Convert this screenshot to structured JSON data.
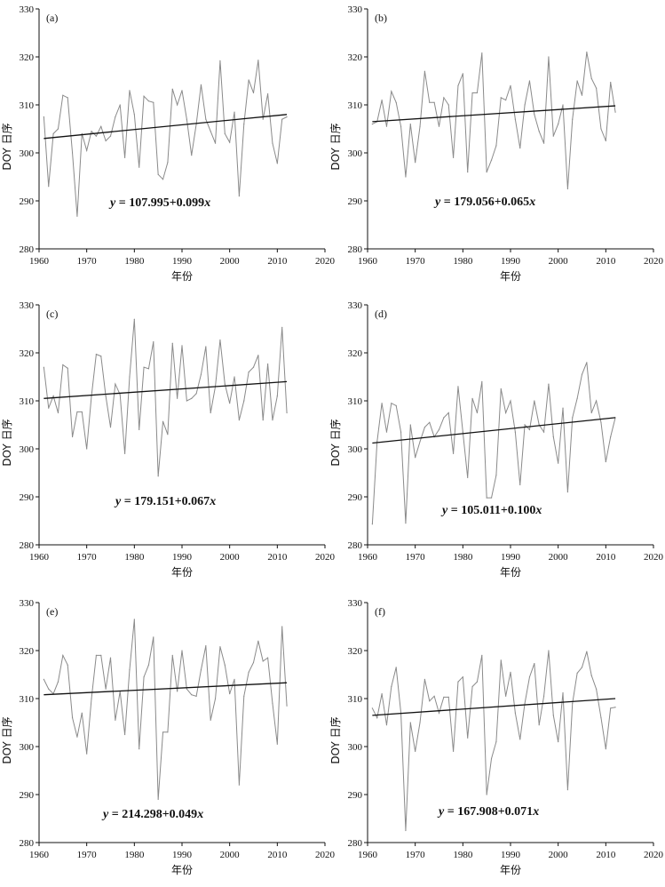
{
  "chart_data": [
    {
      "type": "line",
      "label": "(a)",
      "xlabel": "年份",
      "ylabel": "DOY 日序",
      "xlim": [
        1960,
        2020
      ],
      "ylim": [
        280,
        330
      ],
      "xticks": [
        1960,
        1970,
        1980,
        1990,
        2000,
        2010,
        2020
      ],
      "yticks": [
        280,
        290,
        300,
        310,
        320,
        330
      ],
      "equation": {
        "prefix": "y",
        "rest": " = 107.995+0.099",
        "suffix": "x"
      },
      "trend": {
        "intercept": 107.995,
        "slope": 0.099,
        "start": [
          1961,
          303.0
        ],
        "end": [
          2012,
          308.0
        ]
      },
      "series": [
        {
          "name": "DOY",
          "x_start": 1961,
          "values": [
            307.5,
            293,
            304,
            305,
            312,
            311.5,
            300,
            286.8,
            304,
            300.5,
            304.5,
            303.5,
            305.5,
            302.5,
            303.5,
            307.5,
            310,
            299,
            313,
            308,
            297,
            311.8,
            310.8,
            310.5,
            295.5,
            294.5,
            298,
            313.3,
            310,
            313,
            307,
            299.5,
            306,
            314.2,
            307,
            304.5,
            302,
            319.2,
            304,
            302.2,
            308.5,
            291,
            306,
            315.2,
            312.5,
            319.3,
            307,
            312.3,
            302,
            297.8,
            307,
            307.5
          ]
        }
      ]
    },
    {
      "type": "line",
      "label": "(b)",
      "xlabel": "年份",
      "ylabel": "DOY 日序",
      "xlim": [
        1960,
        2020
      ],
      "ylim": [
        280,
        330
      ],
      "xticks": [
        1960,
        1970,
        1980,
        1990,
        2000,
        2010,
        2020
      ],
      "yticks": [
        280,
        290,
        300,
        310,
        320,
        330
      ],
      "equation": {
        "prefix": "y",
        "rest": " = 179.056+0.065",
        "suffix": "x"
      },
      "trend": {
        "intercept": 179.056,
        "slope": 0.065,
        "start": [
          1961,
          306.5
        ],
        "end": [
          2012,
          309.8
        ]
      },
      "series": [
        {
          "name": "DOY",
          "x_start": 1961,
          "values": [
            306,
            306.5,
            311,
            305.5,
            312.8,
            310.5,
            305.5,
            295,
            306,
            298,
            305.5,
            317,
            310.5,
            310.5,
            305.5,
            311.5,
            310,
            299,
            314,
            316.5,
            296,
            312.5,
            312.5,
            320.8,
            296,
            298.5,
            301.5,
            311.5,
            311,
            314,
            307,
            301,
            310,
            315,
            308,
            304.5,
            302,
            320,
            303.5,
            306,
            310,
            292.5,
            307,
            315,
            312,
            321,
            315.5,
            313.5,
            305,
            302.5,
            314.7,
            308.5
          ]
        }
      ]
    },
    {
      "type": "line",
      "label": "(c)",
      "xlabel": "年份",
      "ylabel": "DOY 日序",
      "xlim": [
        1960,
        2020
      ],
      "ylim": [
        280,
        330
      ],
      "xticks": [
        1960,
        1970,
        1980,
        1990,
        2000,
        2010,
        2020
      ],
      "yticks": [
        280,
        290,
        300,
        310,
        320,
        330
      ],
      "equation": {
        "prefix": "y",
        "rest": " = 179.151+0.067",
        "suffix": "x"
      },
      "trend": {
        "intercept": 179.151,
        "slope": 0.067,
        "start": [
          1961,
          310.5
        ],
        "end": [
          2012,
          314.0
        ]
      },
      "series": [
        {
          "name": "DOY",
          "x_start": 1961,
          "values": [
            317,
            308.5,
            311,
            307.5,
            317.5,
            316.8,
            302.5,
            307.7,
            307.7,
            300,
            311,
            319.7,
            319.3,
            311,
            304.5,
            313.5,
            311.3,
            299,
            315,
            327,
            304,
            317,
            316.7,
            322.3,
            294.3,
            305.7,
            303,
            322,
            310.5,
            321.5,
            310,
            310.5,
            311.5,
            315.5,
            321.3,
            307.5,
            313,
            322.7,
            313.5,
            309.5,
            315,
            306,
            310,
            316,
            317,
            319.5,
            306,
            317.7,
            306,
            311,
            325.3,
            307.5
          ]
        }
      ]
    },
    {
      "type": "line",
      "label": "(d)",
      "xlabel": "年份",
      "ylabel": "DOY 日序",
      "xlim": [
        1960,
        2020
      ],
      "ylim": [
        280,
        330
      ],
      "xticks": [
        1960,
        1970,
        1980,
        1990,
        2000,
        2010,
        2020
      ],
      "yticks": [
        280,
        290,
        300,
        310,
        320,
        330
      ],
      "equation": {
        "prefix": "y",
        "rest": " = 105.011+0.100",
        "suffix": "x"
      },
      "trend": {
        "intercept": 105.011,
        "slope": 0.1,
        "start": [
          1961,
          301.2
        ],
        "end": [
          2012,
          306.5
        ]
      },
      "series": [
        {
          "name": "DOY",
          "x_start": 1961,
          "values": [
            284.3,
            301.5,
            309.5,
            303.5,
            309.5,
            309,
            303.5,
            284.5,
            305,
            298.2,
            301.5,
            304.5,
            305.5,
            302.5,
            304,
            306.5,
            307.5,
            299,
            313,
            303.5,
            294,
            310.5,
            307.5,
            314,
            289.8,
            289.8,
            294.5,
            312.5,
            307.5,
            310,
            303.5,
            292.5,
            305,
            304,
            310,
            305,
            303.5,
            313.5,
            302.5,
            297,
            308.5,
            291,
            306.5,
            310.5,
            315.5,
            318,
            307.5,
            310,
            305.5,
            297.3,
            302.5,
            306.5
          ]
        }
      ]
    },
    {
      "type": "line",
      "label": "(e)",
      "xlabel": "年份",
      "ylabel": "DOY 日序",
      "xlim": [
        1960,
        2020
      ],
      "ylim": [
        280,
        330
      ],
      "xticks": [
        1960,
        1970,
        1980,
        1990,
        2000,
        2010,
        2020
      ],
      "yticks": [
        280,
        290,
        300,
        310,
        320,
        330
      ],
      "equation": {
        "prefix": "y",
        "rest": " = 214.298+0.049",
        "suffix": "x"
      },
      "trend": {
        "intercept": 214.298,
        "slope": 0.049,
        "start": [
          1961,
          310.8
        ],
        "end": [
          2012,
          313.3
        ]
      },
      "series": [
        {
          "name": "DOY",
          "x_start": 1961,
          "values": [
            314,
            312,
            311,
            313.5,
            319,
            317,
            306,
            302,
            307,
            298.5,
            310,
            319,
            319,
            312,
            318.5,
            305.5,
            311.5,
            302.5,
            316,
            326.5,
            299.5,
            314.5,
            317,
            322.8,
            289,
            303,
            303,
            319,
            311.5,
            320,
            312,
            310.8,
            310.5,
            316,
            321,
            305.5,
            310,
            320.8,
            317,
            311,
            314,
            292,
            310.5,
            315.5,
            317.5,
            322,
            317.8,
            318.5,
            309,
            300.5,
            325,
            308.5
          ]
        }
      ]
    },
    {
      "type": "line",
      "label": "(f)",
      "xlabel": "年份",
      "ylabel": "DOY 日序",
      "xlim": [
        1960,
        2020
      ],
      "ylim": [
        280,
        330
      ],
      "xticks": [
        1960,
        1970,
        1980,
        1990,
        2000,
        2010,
        2020
      ],
      "yticks": [
        280,
        290,
        300,
        310,
        320,
        330
      ],
      "equation": {
        "prefix": "y",
        "rest": " = 167.908+0.071",
        "suffix": "x"
      },
      "trend": {
        "intercept": 167.908,
        "slope": 0.071,
        "start": [
          1961,
          306.5
        ],
        "end": [
          2012,
          310.0
        ]
      },
      "series": [
        {
          "name": "DOY",
          "x_start": 1961,
          "values": [
            308,
            306,
            311,
            304.5,
            312.5,
            316.5,
            307,
            282.5,
            305,
            299,
            305,
            314,
            309.5,
            310.5,
            307,
            310.3,
            310.3,
            299,
            313.5,
            314.5,
            301.8,
            312.5,
            313.5,
            319,
            290,
            297.5,
            301,
            318,
            310.5,
            315.5,
            307,
            301.5,
            309,
            314.5,
            317.3,
            304.5,
            310.5,
            320,
            306.5,
            301,
            311.2,
            291,
            309,
            315.3,
            316.5,
            319.8,
            314.8,
            312,
            306,
            299.5,
            308,
            308.2
          ]
        }
      ]
    }
  ]
}
